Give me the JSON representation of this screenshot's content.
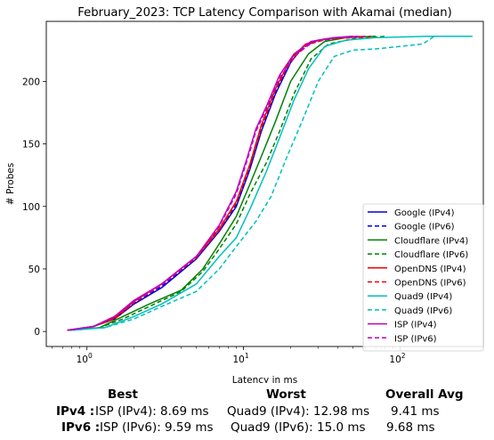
{
  "chart_data": {
    "type": "line",
    "title": "February_2023: TCP Latency Comparison with Akamai (median)",
    "xlabel": "Latency in ms",
    "ylabel": "# Probes",
    "xscale": "log",
    "xlim": [
      0.55,
      340
    ],
    "ylim": [
      -12,
      248
    ],
    "xticks": [
      {
        "value": 1,
        "label": "10^0"
      },
      {
        "value": 10,
        "label": "10^1"
      },
      {
        "value": 100,
        "label": "10^2"
      }
    ],
    "yticks": [
      0,
      50,
      100,
      150,
      200
    ],
    "legend_position": "lower right",
    "series": [
      {
        "name": "Google (IPv4)",
        "color": "#0000dd",
        "dash": "solid",
        "points": [
          [
            0.75,
            1
          ],
          [
            1.1,
            4
          ],
          [
            1.5,
            10
          ],
          [
            2,
            22
          ],
          [
            3,
            35
          ],
          [
            5,
            58
          ],
          [
            7,
            80
          ],
          [
            9,
            100
          ],
          [
            11,
            130
          ],
          [
            13,
            160
          ],
          [
            16,
            190
          ],
          [
            20,
            215
          ],
          [
            24,
            228
          ],
          [
            30,
            233
          ],
          [
            38,
            235
          ],
          [
            50,
            236
          ]
        ]
      },
      {
        "name": "Google (IPv6)",
        "color": "#0000dd",
        "dash": "dashed",
        "points": [
          [
            0.75,
            1
          ],
          [
            1.1,
            4
          ],
          [
            1.5,
            11
          ],
          [
            2,
            23
          ],
          [
            3,
            36
          ],
          [
            5,
            59
          ],
          [
            7,
            81
          ],
          [
            9,
            102
          ],
          [
            11,
            132
          ],
          [
            13,
            162
          ],
          [
            16,
            192
          ],
          [
            20,
            216
          ],
          [
            25,
            229
          ],
          [
            32,
            233
          ],
          [
            42,
            235
          ],
          [
            55,
            236
          ]
        ]
      },
      {
        "name": "Cloudflare (IPv4)",
        "color": "#008000",
        "dash": "solid",
        "points": [
          [
            0.78,
            1
          ],
          [
            1.2,
            3
          ],
          [
            1.7,
            12
          ],
          [
            2.5,
            22
          ],
          [
            4,
            33
          ],
          [
            5.5,
            50
          ],
          [
            7,
            70
          ],
          [
            9,
            92
          ],
          [
            11,
            118
          ],
          [
            13,
            140
          ],
          [
            16,
            168
          ],
          [
            20,
            200
          ],
          [
            26,
            222
          ],
          [
            33,
            232
          ],
          [
            45,
            235
          ],
          [
            70,
            236
          ]
        ]
      },
      {
        "name": "Cloudflare (IPv6)",
        "color": "#008000",
        "dash": "dashed",
        "points": [
          [
            0.78,
            1
          ],
          [
            1.2,
            3
          ],
          [
            1.7,
            10
          ],
          [
            2.5,
            20
          ],
          [
            4,
            32
          ],
          [
            5.5,
            48
          ],
          [
            7,
            66
          ],
          [
            9,
            86
          ],
          [
            11,
            110
          ],
          [
            14,
            135
          ],
          [
            17,
            160
          ],
          [
            21,
            190
          ],
          [
            27,
            218
          ],
          [
            35,
            230
          ],
          [
            50,
            234
          ],
          [
            80,
            236
          ]
        ]
      },
      {
        "name": "OpenDNS (IPv4)",
        "color": "#ee0000",
        "dash": "solid",
        "points": [
          [
            0.75,
            1
          ],
          [
            1.1,
            4
          ],
          [
            1.5,
            11
          ],
          [
            2,
            24
          ],
          [
            3,
            38
          ],
          [
            5,
            60
          ],
          [
            7,
            82
          ],
          [
            9,
            104
          ],
          [
            11,
            134
          ],
          [
            13,
            165
          ],
          [
            16,
            194
          ],
          [
            20,
            218
          ],
          [
            25,
            230
          ],
          [
            33,
            234
          ],
          [
            45,
            235
          ],
          [
            60,
            236
          ]
        ]
      },
      {
        "name": "OpenDNS (IPv6)",
        "color": "#ee0000",
        "dash": "dashed",
        "points": [
          [
            0.75,
            1
          ],
          [
            1.1,
            4
          ],
          [
            1.5,
            10
          ],
          [
            2,
            23
          ],
          [
            3,
            37
          ],
          [
            5,
            59
          ],
          [
            7,
            81
          ],
          [
            9,
            103
          ],
          [
            11,
            133
          ],
          [
            13,
            163
          ],
          [
            16,
            193
          ],
          [
            20,
            217
          ],
          [
            26,
            230
          ],
          [
            35,
            234
          ],
          [
            50,
            235
          ],
          [
            65,
            236
          ]
        ]
      },
      {
        "name": "Quad9 (IPv4)",
        "color": "#00bfbf",
        "dash": "solid",
        "points": [
          [
            0.8,
            1
          ],
          [
            1.3,
            3
          ],
          [
            2,
            12
          ],
          [
            3,
            22
          ],
          [
            5,
            38
          ],
          [
            7,
            60
          ],
          [
            9,
            75
          ],
          [
            11,
            98
          ],
          [
            14,
            128
          ],
          [
            17,
            155
          ],
          [
            21,
            185
          ],
          [
            26,
            210
          ],
          [
            33,
            228
          ],
          [
            45,
            233
          ],
          [
            70,
            235
          ],
          [
            150,
            236
          ],
          [
            290,
            236
          ]
        ]
      },
      {
        "name": "Quad9 (IPv6)",
        "color": "#00bfbf",
        "dash": "dashed",
        "points": [
          [
            0.8,
            1
          ],
          [
            1.3,
            3
          ],
          [
            2,
            10
          ],
          [
            3,
            20
          ],
          [
            5,
            32
          ],
          [
            7,
            50
          ],
          [
            9,
            68
          ],
          [
            12,
            88
          ],
          [
            15,
            108
          ],
          [
            19,
            140
          ],
          [
            24,
            170
          ],
          [
            30,
            200
          ],
          [
            38,
            220
          ],
          [
            50,
            225
          ],
          [
            70,
            226
          ],
          [
            100,
            228
          ],
          [
            140,
            230
          ],
          [
            165,
            236
          ]
        ]
      },
      {
        "name": "ISP (IPv4)",
        "color": "#bf00bf",
        "dash": "solid",
        "points": [
          [
            0.75,
            1
          ],
          [
            1.1,
            4
          ],
          [
            1.5,
            12
          ],
          [
            2,
            25
          ],
          [
            3,
            38
          ],
          [
            5,
            60
          ],
          [
            7,
            85
          ],
          [
            9,
            112
          ],
          [
            10.5,
            138
          ],
          [
            12,
            162
          ],
          [
            14,
            180
          ],
          [
            17,
            205
          ],
          [
            21,
            222
          ],
          [
            27,
            232
          ],
          [
            38,
            235
          ],
          [
            55,
            236
          ]
        ]
      },
      {
        "name": "ISP (IPv6)",
        "color": "#bf00bf",
        "dash": "dashed",
        "points": [
          [
            0.75,
            1
          ],
          [
            1.1,
            4
          ],
          [
            1.5,
            12
          ],
          [
            2,
            24
          ],
          [
            3,
            37
          ],
          [
            5,
            60
          ],
          [
            7,
            84
          ],
          [
            9,
            110
          ],
          [
            10.5,
            136
          ],
          [
            12,
            160
          ],
          [
            14,
            178
          ],
          [
            17,
            203
          ],
          [
            22,
            222
          ],
          [
            28,
            232
          ],
          [
            40,
            235
          ],
          [
            60,
            236
          ]
        ]
      }
    ]
  },
  "stats": {
    "headers": {
      "best": "Best",
      "worst": "Worst",
      "avg": "Overall Avg"
    },
    "rows": [
      {
        "label": "IPv4 :",
        "best": "ISP (IPv4): 8.69 ms",
        "worst": "Quad9 (IPv4): 12.98 ms",
        "avg": "9.41 ms"
      },
      {
        "label": "IPv6 :",
        "best": "ISP (IPv6): 9.59 ms",
        "worst": "Quad9 (IPv6): 15.0 ms",
        "avg": "9.68 ms"
      }
    ]
  }
}
